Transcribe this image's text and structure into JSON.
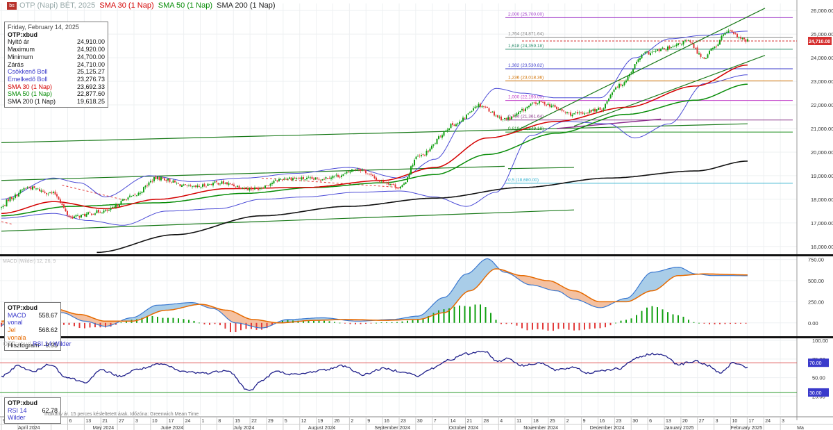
{
  "header": {
    "logo_text": "bs",
    "faint_text": "OTP (Napi) BÉT, 2025",
    "sma30_label": "SMA 30 (1 Nap)",
    "sma50_label": "SMA 50 (1 Nap)",
    "sma200_label": "SMA 200 (1 Nap)"
  },
  "info_main": {
    "date": "Friday, February 14, 2025",
    "ticker": "OTP:xbud",
    "rows": [
      {
        "label": "Nyitó ár",
        "value": "24,910.00"
      },
      {
        "label": "Maximum",
        "value": "24,920.00"
      },
      {
        "label": "Minimum",
        "value": "24,700.00"
      },
      {
        "label": "Zárás",
        "value": "24,710.00"
      },
      {
        "label": "Csökkenő Boll",
        "value": "25,125.27"
      },
      {
        "label": "Emelkedő Boll",
        "value": "23,276.73"
      },
      {
        "label": "SMA 30 (1 Nap)",
        "value": "23,692.33"
      },
      {
        "label": "SMA 50 (1 Nap)",
        "value": "22,877.60"
      },
      {
        "label": "SMA 200 (1 Nap)",
        "value": "19,618.25"
      }
    ]
  },
  "info_macd": {
    "ticker": "OTP:xbud",
    "rows": [
      {
        "label": "MACD vonal",
        "value": "558.67"
      },
      {
        "label": "Jel vonala",
        "value": "568.62"
      },
      {
        "label": "Hisztogram",
        "value": "-9.95"
      }
    ]
  },
  "info_rsi": {
    "ticker": "OTP:xbud",
    "rows": [
      {
        "label": "RSI 14 Wilder",
        "value": "62.78"
      }
    ]
  },
  "macd_title": "MACD (Wilder) 12, 26, 9",
  "rsi_title_faint": "OTP:xbud",
  "rsi_title": "RSI 14 Wilder",
  "footnote": "Indikatív ár. 15 perces késleltetett árak. Időzóna: Greenwich Mean Time",
  "colors": {
    "up": "#11a011",
    "down": "#e23a3a",
    "sma30": "#d40000",
    "sma50": "#078c07",
    "sma200": "#111111",
    "bollinger": "#4a4ad6",
    "trend": "#1a7a1a",
    "macd_line": "#3a78d0",
    "signal_line": "#e66a00",
    "rsi_line": "#1e1e8a",
    "last_price_tag": "#d63030"
  },
  "chart_data": [
    {
      "type": "candlestick",
      "title": "OTP:xbud",
      "price_axis_labels": [
        "26,000.00",
        "25,000.00",
        "24,000.00",
        "23,000.00",
        "22,000.00",
        "21,000.00",
        "20,000.00",
        "19,000.00",
        "18,000.00",
        "17,000.00",
        "16,000.00"
      ],
      "ylim": [
        15700,
        26300
      ],
      "last_price_label": "24,710.00",
      "last_price": 24710,
      "fibonacci": [
        {
          "label": "2,000 (25,700.00)",
          "value": 25700,
          "color": "#a03cc8"
        },
        {
          "label": "1,764 (24,871.64)",
          "value": 24871.64,
          "color": "#888888"
        },
        {
          "label": "1,618 (24,359.18)",
          "value": 24359.18,
          "color": "#2f8f6f"
        },
        {
          "label": "1,382 (23,530.82)",
          "value": 23530.82,
          "color": "#3a3acb"
        },
        {
          "label": "1,236 (23,018.36)",
          "value": 23018.36,
          "color": "#d07000"
        },
        {
          "label": "1,000 (22,190.00)",
          "value": 22190,
          "color": "#c03cc8"
        },
        {
          "label": "0,764 (21,361.64)",
          "value": 21361.64,
          "color": "#8a3a8a"
        },
        {
          "label": "0,618 (20,849.18)",
          "value": 20849.18,
          "color": "#1f8f1f"
        },
        {
          "label": "0,5 (18,680.00)",
          "value": 18680,
          "color": "#38b4d0"
        }
      ],
      "anchors": {
        "close": [
          [
            0,
            17650
          ],
          [
            5,
            18050
          ],
          [
            15,
            18500
          ],
          [
            30,
            18250
          ],
          [
            40,
            17250
          ],
          [
            60,
            17500
          ],
          [
            75,
            18100
          ],
          [
            90,
            18900
          ],
          [
            110,
            18500
          ],
          [
            125,
            18700
          ],
          [
            145,
            18450
          ],
          [
            165,
            18900
          ],
          [
            180,
            18850
          ],
          [
            195,
            19000
          ],
          [
            205,
            19300
          ],
          [
            220,
            18750
          ],
          [
            230,
            18500
          ],
          [
            240,
            19800
          ],
          [
            262,
            21200
          ],
          [
            275,
            22000
          ],
          [
            290,
            21400
          ],
          [
            310,
            22100
          ],
          [
            330,
            21600
          ],
          [
            345,
            21800
          ],
          [
            355,
            22800
          ],
          [
            372,
            24200
          ],
          [
            385,
            24400
          ],
          [
            395,
            24700
          ],
          [
            405,
            24000
          ],
          [
            410,
            24400
          ],
          [
            418,
            25100
          ],
          [
            430,
            24710
          ]
        ],
        "sma30": [
          [
            0,
            17400
          ],
          [
            30,
            17900
          ],
          [
            60,
            17600
          ],
          [
            90,
            18000
          ],
          [
            130,
            18450
          ],
          [
            175,
            18500
          ],
          [
            220,
            18800
          ],
          [
            250,
            19350
          ],
          [
            280,
            20600
          ],
          [
            320,
            21300
          ],
          [
            360,
            21900
          ],
          [
            400,
            22800
          ],
          [
            430,
            23692
          ]
        ],
        "sma50": [
          [
            0,
            17300
          ],
          [
            40,
            17700
          ],
          [
            90,
            17850
          ],
          [
            140,
            18250
          ],
          [
            180,
            18500
          ],
          [
            220,
            18700
          ],
          [
            250,
            19050
          ],
          [
            280,
            19900
          ],
          [
            320,
            20800
          ],
          [
            360,
            21600
          ],
          [
            400,
            22200
          ],
          [
            430,
            22877
          ]
        ],
        "sma200": [
          [
            55,
            15750
          ],
          [
            100,
            16500
          ],
          [
            150,
            17300
          ],
          [
            200,
            17700
          ],
          [
            250,
            18050
          ],
          [
            300,
            18500
          ],
          [
            350,
            18900
          ],
          [
            400,
            19200
          ],
          [
            430,
            19618
          ]
        ],
        "boll_upper": [
          [
            0,
            18000
          ],
          [
            30,
            18900
          ],
          [
            45,
            18700
          ],
          [
            60,
            18100
          ],
          [
            85,
            19000
          ],
          [
            110,
            18750
          ],
          [
            140,
            18900
          ],
          [
            170,
            19100
          ],
          [
            200,
            19350
          ],
          [
            230,
            18900
          ],
          [
            250,
            19700
          ],
          [
            268,
            21400
          ],
          [
            285,
            22700
          ],
          [
            300,
            22500
          ],
          [
            320,
            22300
          ],
          [
            345,
            22300
          ],
          [
            365,
            24000
          ],
          [
            385,
            24800
          ],
          [
            405,
            24950
          ],
          [
            430,
            25125
          ]
        ],
        "boll_lower": [
          [
            0,
            17200
          ],
          [
            30,
            17400
          ],
          [
            50,
            17100
          ],
          [
            70,
            16900
          ],
          [
            95,
            17500
          ],
          [
            125,
            17600
          ],
          [
            150,
            18000
          ],
          [
            175,
            18100
          ],
          [
            205,
            18300
          ],
          [
            230,
            18350
          ],
          [
            250,
            18100
          ],
          [
            268,
            17700
          ],
          [
            285,
            18300
          ],
          [
            305,
            20700
          ],
          [
            325,
            21300
          ],
          [
            350,
            21200
          ],
          [
            365,
            20600
          ],
          [
            385,
            21200
          ],
          [
            405,
            22900
          ],
          [
            430,
            23276
          ]
        ]
      }
    },
    {
      "type": "macd",
      "title": "MACD (Wilder) 12, 26, 9",
      "axis_labels": [
        "750.00",
        "500.00",
        "250.00",
        "0.00"
      ],
      "ylim": [
        -150,
        780
      ],
      "macd_anchors": [
        [
          0,
          -30
        ],
        [
          10,
          180
        ],
        [
          20,
          220
        ],
        [
          35,
          120
        ],
        [
          48,
          20
        ],
        [
          60,
          -40
        ],
        [
          75,
          60
        ],
        [
          90,
          210
        ],
        [
          110,
          240
        ],
        [
          122,
          170
        ],
        [
          135,
          0
        ],
        [
          150,
          -60
        ],
        [
          165,
          40
        ],
        [
          185,
          60
        ],
        [
          205,
          20
        ],
        [
          225,
          40
        ],
        [
          240,
          80
        ],
        [
          255,
          300
        ],
        [
          268,
          580
        ],
        [
          280,
          760
        ],
        [
          290,
          600
        ],
        [
          305,
          450
        ],
        [
          320,
          380
        ],
        [
          330,
          280
        ],
        [
          345,
          180
        ],
        [
          360,
          290
        ],
        [
          375,
          600
        ],
        [
          390,
          660
        ],
        [
          400,
          580
        ],
        [
          410,
          560
        ],
        [
          420,
          560
        ],
        [
          430,
          558.67
        ]
      ],
      "signal_anchors": [
        [
          0,
          20
        ],
        [
          15,
          130
        ],
        [
          30,
          170
        ],
        [
          45,
          100
        ],
        [
          60,
          20
        ],
        [
          75,
          20
        ],
        [
          95,
          150
        ],
        [
          115,
          220
        ],
        [
          130,
          150
        ],
        [
          145,
          40
        ],
        [
          160,
          0
        ],
        [
          180,
          30
        ],
        [
          200,
          40
        ],
        [
          220,
          30
        ],
        [
          240,
          40
        ],
        [
          255,
          120
        ],
        [
          270,
          380
        ],
        [
          285,
          640
        ],
        [
          300,
          560
        ],
        [
          315,
          500
        ],
        [
          330,
          380
        ],
        [
          345,
          250
        ],
        [
          360,
          250
        ],
        [
          375,
          380
        ],
        [
          390,
          560
        ],
        [
          405,
          580
        ],
        [
          430,
          568.62
        ]
      ]
    },
    {
      "type": "line",
      "title": "RSI 14 Wilder",
      "axis_labels": [
        "100.00",
        "75.00",
        "50.00",
        "25.00"
      ],
      "highlight_labels": [
        "70.00",
        "30.00"
      ],
      "ylim": [
        0,
        102
      ],
      "overbought": 70,
      "oversold": 30,
      "rsi_anchors": [
        [
          0,
          52
        ],
        [
          10,
          66
        ],
        [
          18,
          58
        ],
        [
          28,
          68
        ],
        [
          38,
          50
        ],
        [
          48,
          44
        ],
        [
          58,
          60
        ],
        [
          68,
          52
        ],
        [
          80,
          62
        ],
        [
          92,
          68
        ],
        [
          105,
          58
        ],
        [
          118,
          56
        ],
        [
          130,
          60
        ],
        [
          143,
          32
        ],
        [
          150,
          46
        ],
        [
          158,
          58
        ],
        [
          170,
          54
        ],
        [
          185,
          60
        ],
        [
          197,
          66
        ],
        [
          208,
          54
        ],
        [
          220,
          62
        ],
        [
          232,
          58
        ],
        [
          240,
          52
        ],
        [
          248,
          62
        ],
        [
          258,
          74
        ],
        [
          268,
          82
        ],
        [
          278,
          86
        ],
        [
          286,
          72
        ],
        [
          292,
          76
        ],
        [
          300,
          66
        ],
        [
          310,
          70
        ],
        [
          320,
          60
        ],
        [
          330,
          64
        ],
        [
          338,
          56
        ],
        [
          346,
          60
        ],
        [
          356,
          62
        ],
        [
          366,
          76
        ],
        [
          374,
          82
        ],
        [
          382,
          80
        ],
        [
          390,
          68
        ],
        [
          400,
          72
        ],
        [
          408,
          66
        ],
        [
          414,
          56
        ],
        [
          422,
          70
        ],
        [
          430,
          62.78
        ]
      ]
    }
  ],
  "x_axis": {
    "day_ticks": [
      "9",
      "15",
      "22",
      "29",
      "6",
      "13",
      "21",
      "27",
      "3",
      "10",
      "17",
      "24",
      "1",
      "8",
      "15",
      "22",
      "29",
      "5",
      "12",
      "19",
      "26",
      "2",
      "9",
      "16",
      "23",
      "30",
      "7",
      "14",
      "21",
      "28",
      "4",
      "11",
      "18",
      "25",
      "2",
      "9",
      "16",
      "23",
      "30",
      "6",
      "13",
      "20",
      "27",
      "3",
      "10",
      "17",
      "24",
      "3"
    ],
    "months": [
      "April 2024",
      "May 2024",
      "June 2024",
      "July 2024",
      "August 2024",
      "September 2024",
      "October 2024",
      "November 2024",
      "December 2024",
      "January 2025",
      "February 2025",
      "Ma"
    ]
  }
}
